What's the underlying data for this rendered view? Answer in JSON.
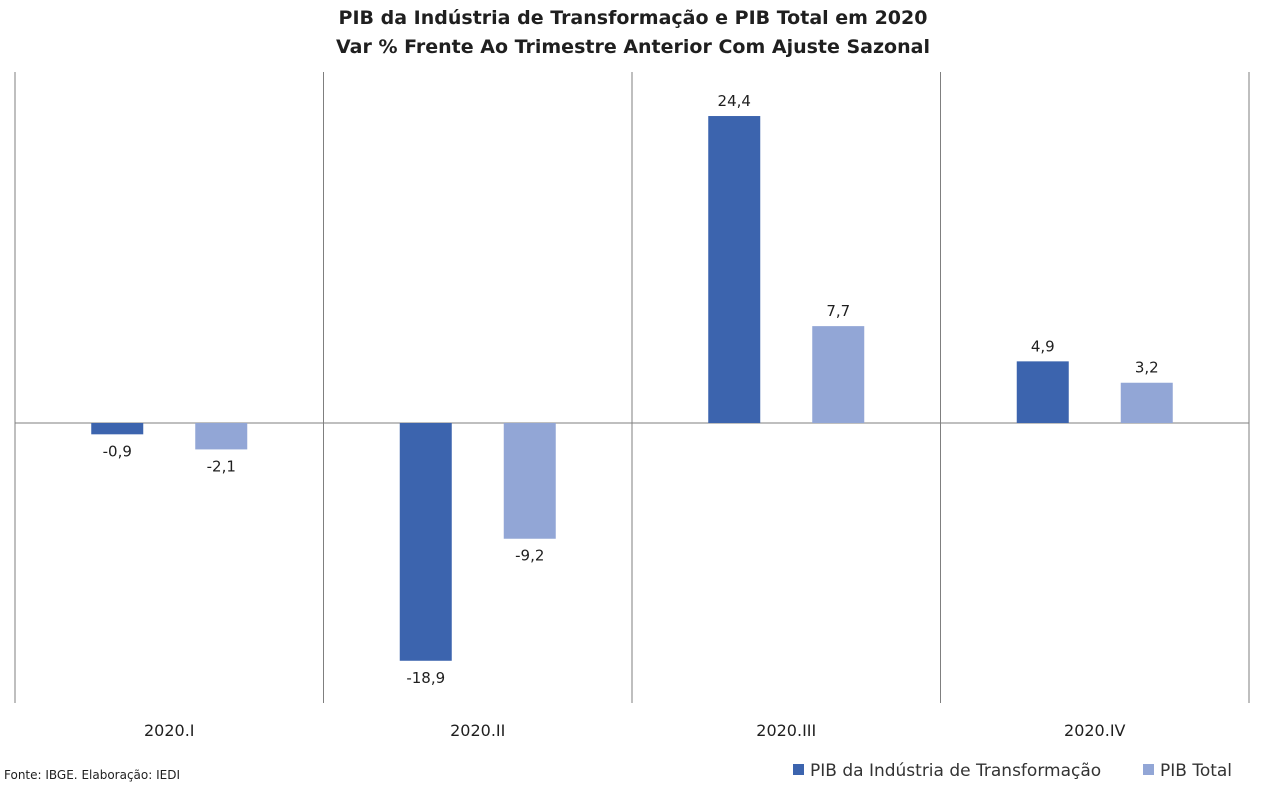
{
  "chart_data": {
    "type": "bar",
    "title": "PIB da Indústria de Transformação e PIB Total em 2020",
    "subtitle": "Var % Frente Ao Trimestre Anterior Com Ajuste Sazonal",
    "categories": [
      "2020.I",
      "2020.II",
      "2020.III",
      "2020.IV"
    ],
    "series": [
      {
        "name": "PIB da Indústria de Transformação",
        "color": "#3c64ae",
        "values": [
          -0.9,
          -18.9,
          24.4,
          4.9
        ],
        "labels": [
          "-0,9",
          "-18,9",
          "24,4",
          "4,9"
        ]
      },
      {
        "name": "PIB Total",
        "color": "#92a6d6",
        "values": [
          -2.1,
          -9.2,
          7.7,
          3.2
        ],
        "labels": [
          "-2,1",
          "-9,2",
          "7,7",
          "3,2"
        ]
      }
    ],
    "ylim": [
      -21.7,
      27.9
    ],
    "grid": false,
    "legend_position": "bottom-right",
    "source": "Fonte: IBGE. Elaboração: IEDI"
  }
}
